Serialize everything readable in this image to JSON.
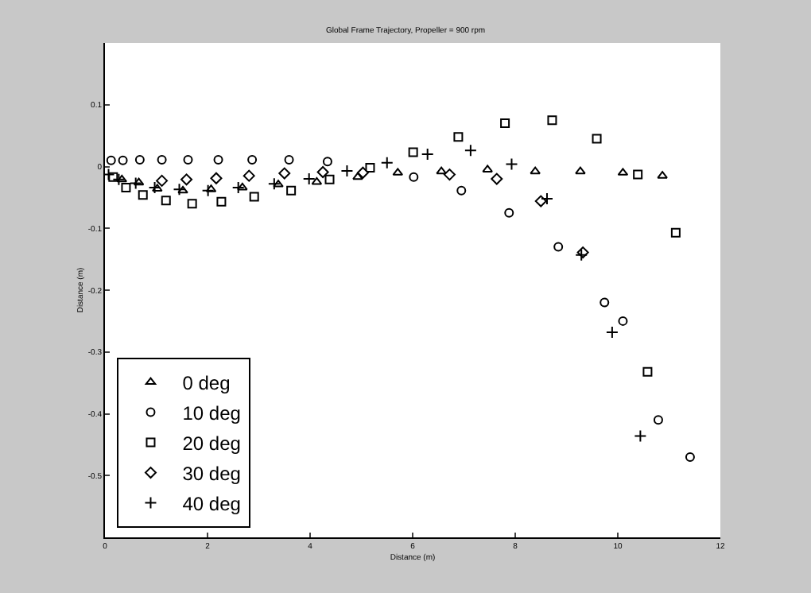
{
  "chart_data": {
    "type": "scatter",
    "title": "Global Frame Trajectory, Propeller = 900 rpm",
    "xlabel": "Distance (m)",
    "ylabel": "Distance (m)",
    "xlim": [
      0,
      12
    ],
    "xticks": [
      0,
      2,
      4,
      6,
      8,
      10,
      12
    ],
    "ylim": [
      -0.6,
      0.2
    ],
    "yticks": [
      0.1,
      0,
      -0.1,
      -0.2,
      -0.3,
      -0.4,
      -0.5
    ],
    "grid": false,
    "legend": "bottom left",
    "series": [
      {
        "name": "0 deg",
        "color": "#000000",
        "marker": "triangle",
        "x": [
          0.33,
          0.66,
          1.02,
          1.52,
          2.07,
          2.68,
          3.38,
          4.13,
          4.93,
          5.71,
          6.56,
          7.46,
          8.39,
          9.27,
          10.1,
          10.87
        ],
        "values": [
          -0.021,
          -0.026,
          -0.036,
          -0.039,
          -0.037,
          -0.034,
          -0.029,
          -0.025,
          -0.017,
          -0.01,
          -0.008,
          -0.005,
          -0.008,
          -0.008,
          -0.01,
          -0.015
        ]
      },
      {
        "name": "10 deg",
        "color": "#000000",
        "marker": "circle",
        "x": [
          0.12,
          0.35,
          0.68,
          1.11,
          1.62,
          2.21,
          2.87,
          3.59,
          4.34,
          6.02,
          6.95,
          7.88,
          8.84,
          9.74,
          10.1,
          10.79,
          11.41
        ],
        "values": [
          0.01,
          0.01,
          0.011,
          0.011,
          0.011,
          0.011,
          0.011,
          0.011,
          0.008,
          -0.017,
          -0.039,
          -0.075,
          -0.13,
          -0.22,
          -0.25,
          -0.41,
          -0.47
        ]
      },
      {
        "name": "20 deg",
        "color": "#000000",
        "marker": "square",
        "x": [
          0.16,
          0.41,
          0.74,
          1.19,
          1.7,
          2.27,
          2.91,
          3.63,
          4.38,
          5.17,
          6.01,
          6.89,
          7.8,
          8.72,
          9.59,
          10.39,
          11.13,
          10.58
        ],
        "values": [
          -0.017,
          -0.034,
          -0.046,
          -0.055,
          -0.06,
          -0.057,
          -0.049,
          -0.039,
          -0.021,
          -0.002,
          0.023,
          0.048,
          0.07,
          0.075,
          0.045,
          -0.013,
          -0.107,
          -0.332
        ]
      },
      {
        "name": "30 deg",
        "color": "#000000",
        "marker": "diamond",
        "x": [
          1.11,
          1.59,
          2.17,
          2.81,
          3.5,
          4.25,
          5.03,
          6.72,
          7.64,
          8.5,
          9.32
        ],
        "values": [
          -0.023,
          -0.021,
          -0.019,
          -0.015,
          -0.011,
          -0.009,
          -0.01,
          -0.013,
          -0.02,
          -0.056,
          -0.139
        ]
      },
      {
        "name": "40 deg",
        "color": "#000000",
        "marker": "cross",
        "x": [
          0.07,
          0.27,
          0.6,
          0.97,
          1.45,
          2.01,
          2.6,
          3.3,
          3.98,
          4.72,
          5.5,
          6.29,
          7.13,
          7.93,
          8.62,
          9.29,
          9.89,
          10.44
        ],
        "values": [
          -0.013,
          -0.021,
          -0.027,
          -0.034,
          -0.037,
          -0.039,
          -0.034,
          -0.028,
          -0.02,
          -0.007,
          0.006,
          0.02,
          0.026,
          0.004,
          -0.052,
          -0.143,
          -0.268,
          -0.436
        ]
      }
    ]
  }
}
